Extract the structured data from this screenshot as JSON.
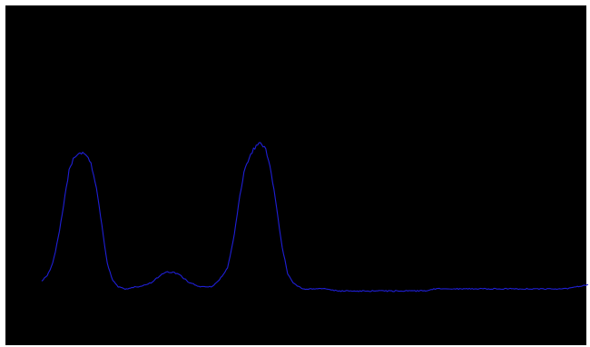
{
  "chart_data": {
    "type": "line",
    "title": "",
    "xlabel": "",
    "ylabel": "",
    "xlim": [
      0,
      100
    ],
    "ylim": [
      0,
      1
    ],
    "grid": false,
    "legend": "none",
    "background_color": "#000000",
    "line_color": "#1f1fd6",
    "series": [
      {
        "name": "",
        "points": [
          [
            0,
            0.04
          ],
          [
            1,
            0.06
          ],
          [
            2,
            0.12
          ],
          [
            3,
            0.24
          ],
          [
            4,
            0.4
          ],
          [
            5,
            0.56
          ],
          [
            6,
            0.63
          ],
          [
            7,
            0.64
          ],
          [
            8,
            0.64
          ],
          [
            9,
            0.6
          ],
          [
            10,
            0.48
          ],
          [
            11,
            0.3
          ],
          [
            12,
            0.12
          ],
          [
            13,
            0.04
          ],
          [
            14,
            0.01
          ],
          [
            15,
            0.0
          ],
          [
            16,
            0.0
          ],
          [
            17,
            0.01
          ],
          [
            18,
            0.01
          ],
          [
            19,
            0.02
          ],
          [
            20,
            0.03
          ],
          [
            21,
            0.05
          ],
          [
            22,
            0.07
          ],
          [
            23,
            0.08
          ],
          [
            24,
            0.08
          ],
          [
            25,
            0.07
          ],
          [
            26,
            0.05
          ],
          [
            27,
            0.03
          ],
          [
            28,
            0.02
          ],
          [
            29,
            0.01
          ],
          [
            30,
            0.01
          ],
          [
            31,
            0.01
          ],
          [
            32,
            0.03
          ],
          [
            33,
            0.06
          ],
          [
            34,
            0.1
          ],
          [
            35,
            0.22
          ],
          [
            36,
            0.4
          ],
          [
            37,
            0.55
          ],
          [
            38,
            0.63
          ],
          [
            39,
            0.67
          ],
          [
            40,
            0.69
          ],
          [
            41,
            0.66
          ],
          [
            42,
            0.55
          ],
          [
            43,
            0.38
          ],
          [
            44,
            0.2
          ],
          [
            45,
            0.07
          ],
          [
            46,
            0.03
          ],
          [
            47,
            0.01
          ],
          [
            48,
            0.0
          ],
          [
            50,
            0.0
          ],
          [
            52,
            0.0
          ],
          [
            54,
            -0.01
          ],
          [
            56,
            -0.01
          ],
          [
            58,
            -0.01
          ],
          [
            60,
            -0.01
          ],
          [
            62,
            -0.01
          ],
          [
            64,
            -0.01
          ],
          [
            66,
            -0.01
          ],
          [
            68,
            -0.01
          ],
          [
            70,
            -0.01
          ],
          [
            72,
            0.0
          ],
          [
            74,
            0.0
          ],
          [
            76,
            0.0
          ],
          [
            78,
            0.0
          ],
          [
            80,
            0.0
          ],
          [
            82,
            0.0
          ],
          [
            84,
            0.0
          ],
          [
            86,
            0.0
          ],
          [
            88,
            0.0
          ],
          [
            90,
            0.0
          ],
          [
            92,
            0.0
          ],
          [
            94,
            0.0
          ],
          [
            96,
            0.0
          ],
          [
            98,
            0.01
          ],
          [
            100,
            0.02
          ]
        ]
      }
    ]
  }
}
